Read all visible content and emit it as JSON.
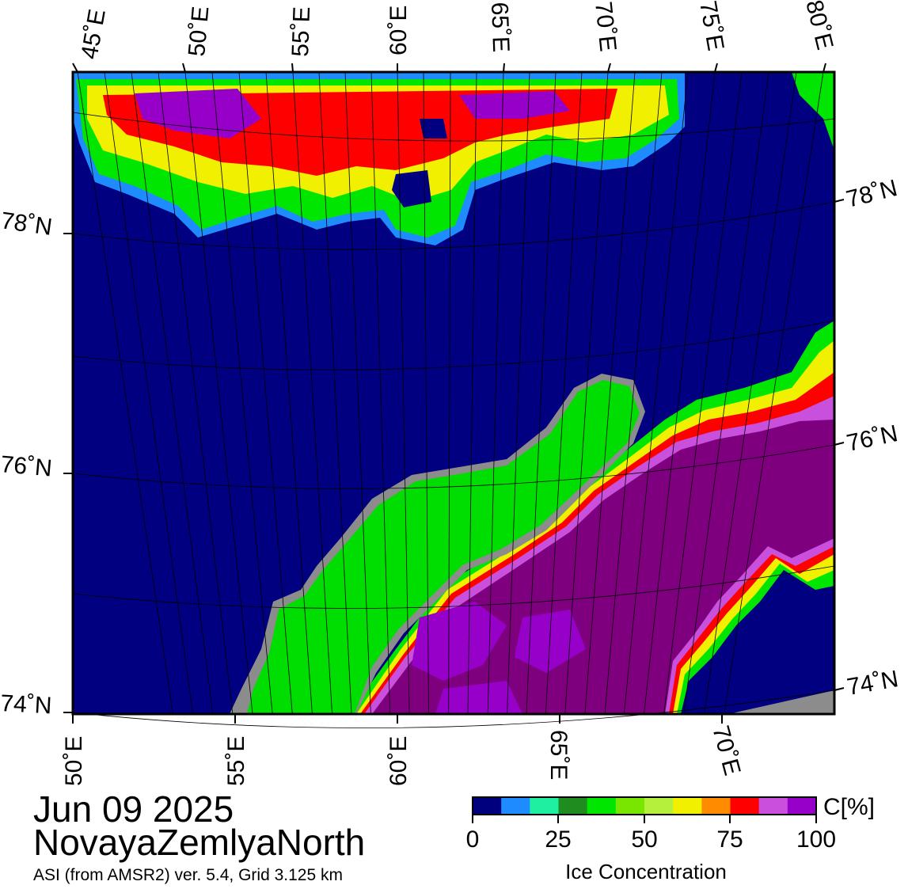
{
  "map": {
    "top_lon_labels": [
      "45˚E",
      "50˚E",
      "55˚E",
      "60˚E",
      "65˚E",
      "70˚E",
      "75˚E",
      "80˚E"
    ],
    "bottom_lon_labels": [
      "50˚E",
      "55˚E",
      "60˚E",
      "65˚E",
      "70˚E"
    ],
    "left_lat_labels": [
      "78˚N",
      "76˚N",
      "74˚N"
    ],
    "right_lat_labels": [
      "78˚N",
      "76˚N",
      "74˚N"
    ],
    "colors": {
      "open_water": "#000080",
      "land": "#00dd00",
      "coast_gray": "#8c8c8c",
      "ice_high": "#7f007f",
      "frame": "#000000"
    }
  },
  "title": {
    "date": "Jun 09 2025",
    "region": "NovayaZemlyaNorth",
    "subtitle": "ASI (from AMSR2) ver. 5.4,  Grid 3.125 km"
  },
  "legend": {
    "unit": "C[%]",
    "caption": "Ice Concentration",
    "ticks": [
      "0",
      "25",
      "50",
      "75",
      "100"
    ],
    "colors": [
      "#00007f",
      "#1e8cff",
      "#1ef0a0",
      "#1e8c1e",
      "#00e600",
      "#78e600",
      "#b4f03c",
      "#f0f000",
      "#ff8c00",
      "#ff0000",
      "#c850dc",
      "#9600c8"
    ]
  }
}
